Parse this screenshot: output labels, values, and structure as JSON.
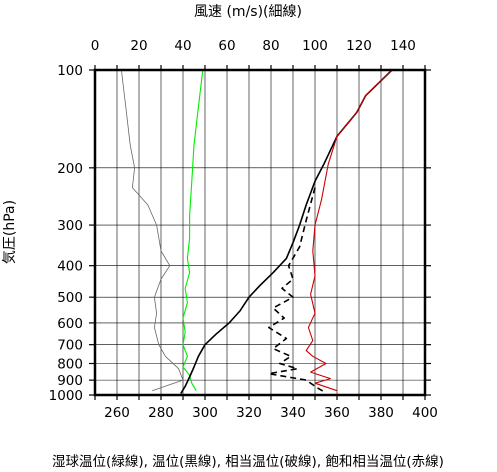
{
  "chart_data": {
    "type": "line",
    "title_top": "風速 (m/s)(細線)",
    "ylabel": "気圧(hPa)",
    "xlabel_bottom": "湿球温位(緑線), 温位(黒線), 相当温位(破線), 飽和相当温位(赤線)",
    "top_axis": {
      "range": [
        0,
        150
      ],
      "ticks": [
        "0",
        "20",
        "40",
        "60",
        "80",
        "100",
        "120",
        "140"
      ],
      "tick_values": [
        0,
        20,
        40,
        60,
        80,
        100,
        120,
        140
      ]
    },
    "bottom_axis": {
      "range": [
        250,
        400
      ],
      "ticks": [
        "260",
        "280",
        "300",
        "320",
        "340",
        "360",
        "380",
        "400"
      ],
      "tick_values": [
        260,
        280,
        300,
        320,
        340,
        360,
        380,
        400
      ]
    },
    "y_axis": {
      "scale": "log",
      "range": [
        1000,
        100
      ],
      "ticks": [
        "100",
        "200",
        "300",
        "400",
        "500",
        "600",
        "700",
        "800",
        "900",
        "1000"
      ],
      "tick_values": [
        100,
        200,
        300,
        400,
        500,
        600,
        700,
        800,
        900,
        1000
      ]
    },
    "grid": true,
    "series": [
      {
        "color": "#00ee00",
        "axis": "bottom",
        "points": [
          [
            299,
            100
          ],
          [
            297,
            130
          ],
          [
            295,
            170
          ],
          [
            294,
            220
          ],
          [
            293,
            280
          ],
          [
            293,
            330
          ],
          [
            292,
            380
          ],
          [
            293,
            420
          ],
          [
            291,
            470
          ],
          [
            292,
            520
          ],
          [
            290,
            580
          ],
          [
            291,
            640
          ],
          [
            290,
            700
          ],
          [
            292,
            760
          ],
          [
            290,
            820
          ],
          [
            293,
            870
          ],
          [
            294,
            920
          ],
          [
            296,
            970
          ]
        ]
      },
      {
        "color": "#000000",
        "axis": "bottom",
        "points": [
          [
            385,
            100
          ],
          [
            373,
            120
          ],
          [
            369,
            135
          ],
          [
            360,
            160
          ],
          [
            354,
            195
          ],
          [
            350,
            220
          ],
          [
            346,
            260
          ],
          [
            343,
            300
          ],
          [
            340,
            340
          ],
          [
            337,
            380
          ],
          [
            331,
            420
          ],
          [
            325,
            460
          ],
          [
            320,
            500
          ],
          [
            316,
            550
          ],
          [
            311,
            600
          ],
          [
            305,
            650
          ],
          [
            300,
            700
          ],
          [
            297,
            760
          ],
          [
            295,
            820
          ],
          [
            293,
            880
          ],
          [
            291,
            940
          ],
          [
            289,
            990
          ]
        ]
      },
      {
        "color": "#000000",
        "dashed": true,
        "axis": "bottom",
        "points": [
          [
            350,
            230
          ],
          [
            346,
            290
          ],
          [
            343,
            350
          ],
          [
            338,
            400
          ],
          [
            340,
            440
          ],
          [
            335,
            470
          ],
          [
            340,
            500
          ],
          [
            331,
            540
          ],
          [
            336,
            580
          ],
          [
            329,
            620
          ],
          [
            337,
            670
          ],
          [
            331,
            720
          ],
          [
            339,
            760
          ],
          [
            334,
            800
          ],
          [
            342,
            830
          ],
          [
            329,
            860
          ],
          [
            346,
            900
          ],
          [
            351,
            950
          ],
          [
            355,
            985
          ]
        ]
      },
      {
        "color": "#cc0000",
        "axis": "bottom",
        "points": [
          [
            385,
            100
          ],
          [
            373,
            120
          ],
          [
            369,
            135
          ],
          [
            360,
            160
          ],
          [
            356,
            195
          ],
          [
            353,
            250
          ],
          [
            350,
            300
          ],
          [
            349,
            360
          ],
          [
            350,
            430
          ],
          [
            348,
            490
          ],
          [
            350,
            560
          ],
          [
            347,
            620
          ],
          [
            349,
            680
          ],
          [
            346,
            730
          ],
          [
            349,
            760
          ],
          [
            355,
            800
          ],
          [
            348,
            850
          ],
          [
            357,
            890
          ],
          [
            350,
            920
          ],
          [
            360,
            970
          ]
        ]
      },
      {
        "color": "#666666",
        "axis": "top",
        "points": [
          [
            12,
            100
          ],
          [
            14,
            130
          ],
          [
            16,
            170
          ],
          [
            18,
            200
          ],
          [
            17,
            230
          ],
          [
            24,
            260
          ],
          [
            28,
            300
          ],
          [
            30,
            360
          ],
          [
            34,
            400
          ],
          [
            30,
            440
          ],
          [
            27,
            500
          ],
          [
            28,
            560
          ],
          [
            27,
            620
          ],
          [
            29,
            700
          ],
          [
            32,
            760
          ],
          [
            38,
            830
          ],
          [
            40,
            900
          ],
          [
            26,
            970
          ]
        ]
      }
    ]
  }
}
